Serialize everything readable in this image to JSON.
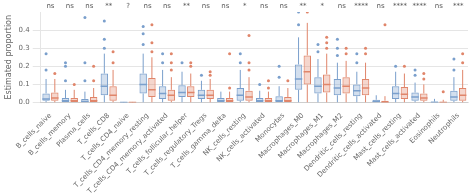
{
  "chart_data": {
    "type": "box",
    "ylabel": "Estimated proportion",
    "categories": [
      "B_cells_naive",
      "B_cells_memory",
      "Plasma_cells",
      "T_cells_CD8",
      "T_cells_CD4_naive",
      "T_cells_CD4_memory_resting",
      "T_cells_CD4_memory_activated",
      "T_cells_follicular_helper",
      "T_cells_regulatory_Tregs",
      "T_cells_gamma_delta",
      "NK_cells_resting",
      "NK_cells_activated",
      "Monocytes",
      "Macrophages_M0",
      "Macrophages_M1",
      "Macrophages_M2",
      "Dendritic_cells_resting",
      "Dendritic_cells_activated",
      "Mast_cells_resting",
      "Mast_cells_activated",
      "Eosinophils",
      "Neutrophils"
    ],
    "annotations": [
      "ns",
      "ns",
      "ns",
      "**",
      "?",
      "ns",
      "ns",
      "**",
      "ns",
      "ns",
      "*",
      "ns",
      "ns",
      "**",
      "*",
      "ns",
      "****",
      "ns",
      "****",
      "****",
      "ns",
      "***"
    ],
    "ylim": [
      0.0,
      0.5
    ],
    "yticks": [
      {
        "value": 0.0,
        "label": "0.0"
      },
      0.1,
      0.2,
      0.3,
      0.4
    ],
    "grid": true,
    "series": [
      {
        "color": "#7a9fcc",
        "values": [
          {
            "q1": 0.01,
            "med": 0.02,
            "q3": 0.05,
            "whislo": 0.0,
            "whishi": 0.13,
            "fliers": [
              0.18,
              0.27
            ]
          },
          {
            "q1": 0.0,
            "med": 0.01,
            "q3": 0.025,
            "whislo": 0.0,
            "whishi": 0.07,
            "fliers": [
              0.12,
              0.2,
              0.22
            ]
          },
          {
            "q1": 0.0,
            "med": 0.005,
            "q3": 0.02,
            "whislo": 0.0,
            "whishi": 0.06,
            "fliers": [
              0.12,
              0.22,
              0.47
            ]
          },
          {
            "q1": 0.04,
            "med": 0.09,
            "q3": 0.16,
            "whislo": 0.0,
            "whishi": 0.27,
            "fliers": [
              0.3,
              0.35,
              0.45
            ]
          },
          {
            "q1": 0.0,
            "med": 0.0,
            "q3": 0.0,
            "whislo": 0.0,
            "whishi": 0.003,
            "fliers": []
          },
          {
            "q1": 0.05,
            "med": 0.1,
            "q3": 0.16,
            "whislo": 0.0,
            "whishi": 0.27,
            "fliers": [
              0.32,
              0.38,
              0.42
            ]
          },
          {
            "q1": 0.02,
            "med": 0.05,
            "q3": 0.09,
            "whislo": 0.0,
            "whishi": 0.18,
            "fliers": [
              0.22,
              0.27
            ]
          },
          {
            "q1": 0.03,
            "med": 0.055,
            "q3": 0.095,
            "whislo": 0.0,
            "whishi": 0.17,
            "fliers": [
              0.22
            ]
          },
          {
            "q1": 0.02,
            "med": 0.04,
            "q3": 0.07,
            "whislo": 0.0,
            "whishi": 0.12,
            "fliers": [
              0.15
            ]
          },
          {
            "q1": 0.0,
            "med": 0.01,
            "q3": 0.025,
            "whislo": 0.0,
            "whishi": 0.06,
            "fliers": []
          },
          {
            "q1": 0.01,
            "med": 0.04,
            "q3": 0.08,
            "whislo": 0.0,
            "whishi": 0.18,
            "fliers": [
              0.22,
              0.27
            ]
          },
          {
            "q1": 0.0,
            "med": 0.01,
            "q3": 0.025,
            "whislo": 0.0,
            "whishi": 0.065,
            "fliers": [
              0.1
            ]
          },
          {
            "q1": 0.0,
            "med": 0.01,
            "q3": 0.035,
            "whislo": 0.0,
            "whishi": 0.09,
            "fliers": [
              0.14,
              0.2
            ]
          },
          {
            "q1": 0.07,
            "med": 0.13,
            "q3": 0.21,
            "whislo": 0.0,
            "whishi": 0.36,
            "fliers": [
              0.43,
              0.5
            ]
          },
          {
            "q1": 0.05,
            "med": 0.09,
            "q3": 0.14,
            "whislo": 0.0,
            "whishi": 0.24,
            "fliers": [
              0.28,
              0.32
            ]
          },
          {
            "q1": 0.04,
            "med": 0.08,
            "q3": 0.13,
            "whislo": 0.0,
            "whishi": 0.22,
            "fliers": [
              0.26,
              0.3,
              0.35
            ]
          },
          {
            "q1": 0.035,
            "med": 0.065,
            "q3": 0.1,
            "whislo": 0.0,
            "whishi": 0.17,
            "fliers": [
              0.22,
              0.27
            ]
          },
          {
            "q1": 0.0,
            "med": 0.005,
            "q3": 0.015,
            "whislo": 0.0,
            "whishi": 0.04,
            "fliers": []
          },
          {
            "q1": 0.02,
            "med": 0.05,
            "q3": 0.09,
            "whislo": 0.0,
            "whishi": 0.17,
            "fliers": [
              0.2
            ]
          },
          {
            "q1": 0.01,
            "med": 0.03,
            "q3": 0.055,
            "whislo": 0.0,
            "whishi": 0.11,
            "fliers": [
              0.15,
              0.18
            ]
          },
          {
            "q1": 0.0,
            "med": 0.0,
            "q3": 0.005,
            "whislo": 0.0,
            "whishi": 0.02,
            "fliers": []
          },
          {
            "q1": 0.01,
            "med": 0.03,
            "q3": 0.065,
            "whislo": 0.0,
            "whishi": 0.14,
            "fliers": [
              0.18,
              0.24
            ]
          }
        ]
      },
      {
        "color": "#e0856a",
        "values": [
          {
            "q1": 0.01,
            "med": 0.025,
            "q3": 0.055,
            "whislo": 0.0,
            "whishi": 0.13,
            "fliers": [
              0.16
            ]
          },
          {
            "q1": 0.0,
            "med": 0.01,
            "q3": 0.025,
            "whislo": 0.0,
            "whishi": 0.07,
            "fliers": [
              0.1
            ]
          },
          {
            "q1": 0.0,
            "med": 0.01,
            "q3": 0.03,
            "whislo": 0.0,
            "whishi": 0.08,
            "fliers": [
              0.12,
              0.2
            ]
          },
          {
            "q1": 0.01,
            "med": 0.04,
            "q3": 0.09,
            "whislo": 0.0,
            "whishi": 0.18,
            "fliers": [
              0.22,
              0.28
            ]
          },
          {
            "q1": 0.0,
            "med": 0.0,
            "q3": 0.0,
            "whislo": 0.0,
            "whishi": 0.003,
            "fliers": []
          },
          {
            "q1": 0.03,
            "med": 0.07,
            "q3": 0.135,
            "whislo": 0.0,
            "whishi": 0.25,
            "fliers": [
              0.28,
              0.33,
              0.43
            ]
          },
          {
            "q1": 0.01,
            "med": 0.04,
            "q3": 0.07,
            "whislo": 0.0,
            "whishi": 0.14,
            "fliers": [
              0.18,
              0.22,
              0.27
            ]
          },
          {
            "q1": 0.03,
            "med": 0.055,
            "q3": 0.09,
            "whislo": 0.0,
            "whishi": 0.16,
            "fliers": [
              0.2,
              0.22
            ]
          },
          {
            "q1": 0.02,
            "med": 0.04,
            "q3": 0.07,
            "whislo": 0.0,
            "whishi": 0.13,
            "fliers": [
              0.15,
              0.17
            ]
          },
          {
            "q1": 0.0,
            "med": 0.01,
            "q3": 0.025,
            "whislo": 0.0,
            "whishi": 0.06,
            "fliers": [
              0.08,
              0.27
            ]
          },
          {
            "q1": 0.01,
            "med": 0.03,
            "q3": 0.065,
            "whislo": 0.0,
            "whishi": 0.14,
            "fliers": [
              0.18,
              0.22,
              0.37
            ]
          },
          {
            "q1": 0.0,
            "med": 0.01,
            "q3": 0.025,
            "whislo": 0.0,
            "whishi": 0.06,
            "fliers": [
              0.08,
              0.12
            ]
          },
          {
            "q1": 0.0,
            "med": 0.01,
            "q3": 0.03,
            "whislo": 0.0,
            "whishi": 0.08,
            "fliers": [
              0.12
            ]
          },
          {
            "q1": 0.1,
            "med": 0.17,
            "q3": 0.26,
            "whislo": 0.0,
            "whishi": 0.44,
            "fliers": [
              0.5
            ]
          },
          {
            "q1": 0.055,
            "med": 0.1,
            "q3": 0.155,
            "whislo": 0.0,
            "whishi": 0.27,
            "fliers": [
              0.3,
              0.33,
              0.36
            ]
          },
          {
            "q1": 0.05,
            "med": 0.09,
            "q3": 0.14,
            "whislo": 0.0,
            "whishi": 0.23,
            "fliers": [
              0.27,
              0.3
            ]
          },
          {
            "q1": 0.04,
            "med": 0.08,
            "q3": 0.13,
            "whislo": 0.0,
            "whishi": 0.22,
            "fliers": [
              0.27,
              0.3
            ]
          },
          {
            "q1": 0.0,
            "med": 0.0,
            "q3": 0.01,
            "whislo": 0.0,
            "whishi": 0.035,
            "fliers": [
              0.43
            ]
          },
          {
            "q1": 0.02,
            "med": 0.045,
            "q3": 0.085,
            "whislo": 0.0,
            "whishi": 0.16,
            "fliers": [
              0.2
            ]
          },
          {
            "q1": 0.01,
            "med": 0.025,
            "q3": 0.05,
            "whislo": 0.0,
            "whishi": 0.1,
            "fliers": [
              0.13,
              0.16
            ]
          },
          {
            "q1": 0.0,
            "med": 0.0,
            "q3": 0.004,
            "whislo": 0.0,
            "whishi": 0.015,
            "fliers": [
              0.06
            ]
          },
          {
            "q1": 0.01,
            "med": 0.04,
            "q3": 0.08,
            "whislo": 0.0,
            "whishi": 0.18,
            "fliers": [
              0.22,
              0.27
            ]
          }
        ]
      }
    ]
  }
}
